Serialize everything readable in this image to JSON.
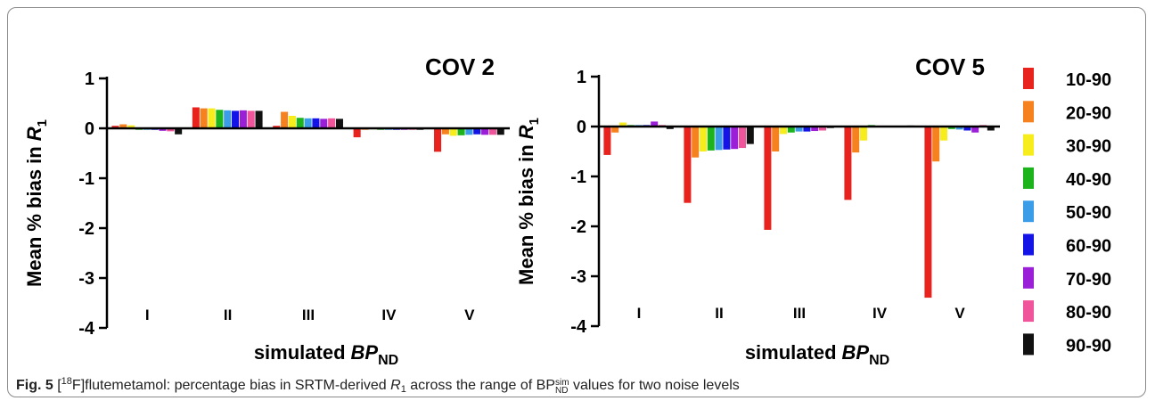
{
  "chart_data": [
    {
      "type": "bar",
      "title": "COV 2",
      "y_label": {
        "text": "Mean % bias in",
        "var": "R",
        "sub": "1"
      },
      "x_label": {
        "text": "simulated",
        "var": "BP",
        "sub": "ND"
      },
      "categories": [
        "I",
        "II",
        "III",
        "IV",
        "V"
      ],
      "ylim": [
        -4,
        1
      ],
      "yticks": [
        1,
        0,
        -1,
        -2,
        -3,
        -4
      ],
      "series": [
        {
          "name": "10-90",
          "color": "#e8231e",
          "values": [
            0.05,
            0.42,
            0.05,
            -0.18,
            -0.47
          ]
        },
        {
          "name": "20-90",
          "color": "#f5821f",
          "values": [
            0.08,
            0.4,
            0.33,
            -0.03,
            -0.12
          ]
        },
        {
          "name": "30-90",
          "color": "#f7ec1c",
          "values": [
            0.06,
            0.4,
            0.25,
            -0.02,
            -0.15
          ]
        },
        {
          "name": "40-90",
          "color": "#1db31d",
          "values": [
            -0.03,
            0.37,
            0.21,
            -0.03,
            -0.14
          ]
        },
        {
          "name": "50-90",
          "color": "#3b9de8",
          "values": [
            -0.03,
            0.36,
            0.2,
            -0.03,
            -0.13
          ]
        },
        {
          "name": "60-90",
          "color": "#1414e6",
          "values": [
            -0.03,
            0.35,
            0.2,
            -0.03,
            -0.12
          ]
        },
        {
          "name": "70-90",
          "color": "#9b1fd6",
          "values": [
            -0.05,
            0.36,
            0.19,
            -0.03,
            -0.13
          ]
        },
        {
          "name": "80-90",
          "color": "#f0559b",
          "values": [
            -0.06,
            0.35,
            0.2,
            -0.03,
            -0.13
          ]
        },
        {
          "name": "90-90",
          "color": "#111111",
          "values": [
            -0.12,
            0.35,
            0.19,
            -0.03,
            -0.13
          ]
        }
      ]
    },
    {
      "type": "bar",
      "title": "COV 5",
      "y_label": {
        "text": "Mean % bias in",
        "var": "R",
        "sub": "1"
      },
      "x_label": {
        "text": "simulated",
        "var": "BP",
        "sub": "ND"
      },
      "categories": [
        "I",
        "II",
        "III",
        "IV",
        "V"
      ],
      "ylim": [
        -4,
        1
      ],
      "yticks": [
        1,
        0,
        -1,
        -2,
        -3,
        -4
      ],
      "legend": "right",
      "series": [
        {
          "name": "10-90",
          "color": "#e8231e",
          "values": [
            -0.57,
            -1.53,
            -2.07,
            -1.47,
            -3.43
          ]
        },
        {
          "name": "20-90",
          "color": "#f5821f",
          "values": [
            -0.12,
            -0.62,
            -0.5,
            -0.52,
            -0.7
          ]
        },
        {
          "name": "30-90",
          "color": "#f7ec1c",
          "values": [
            0.08,
            -0.5,
            -0.15,
            -0.28,
            -0.28
          ]
        },
        {
          "name": "40-90",
          "color": "#1db31d",
          "values": [
            0.03,
            -0.48,
            -0.12,
            0.03,
            -0.05
          ]
        },
        {
          "name": "50-90",
          "color": "#3b9de8",
          "values": [
            0.03,
            -0.47,
            -0.1,
            0.0,
            -0.06
          ]
        },
        {
          "name": "60-90",
          "color": "#1414e6",
          "values": [
            0.03,
            -0.46,
            -0.1,
            0.0,
            -0.08
          ]
        },
        {
          "name": "70-90",
          "color": "#9b1fd6",
          "values": [
            0.1,
            -0.45,
            -0.09,
            0.0,
            -0.12
          ]
        },
        {
          "name": "80-90",
          "color": "#f0559b",
          "values": [
            0.03,
            -0.43,
            -0.08,
            0.0,
            0.03
          ]
        },
        {
          "name": "90-90",
          "color": "#111111",
          "values": [
            -0.05,
            -0.35,
            -0.03,
            0.02,
            -0.08
          ]
        }
      ]
    }
  ],
  "caption": {
    "label": "Fig. 5",
    "open": " [",
    "iso": "18",
    "text1": "F]flutemetamol: percentage bias in SRTM-derived ",
    "var": "R",
    "sub": "1",
    "text2": " across the range of BP",
    "bp_sup": "sim",
    "bp_sub": "ND",
    "text3": " values for two noise levels"
  }
}
